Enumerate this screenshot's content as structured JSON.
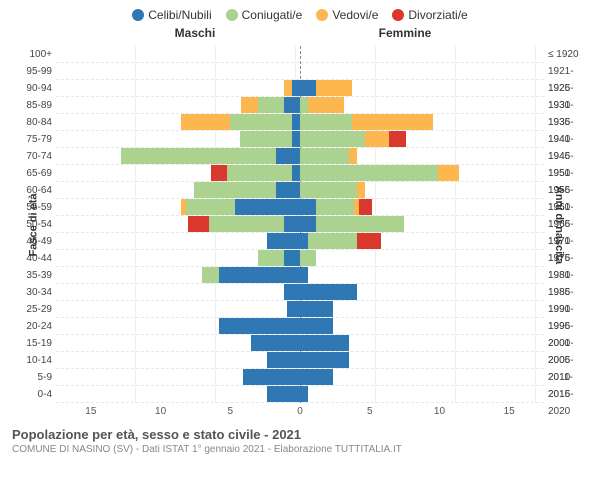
{
  "chart": {
    "type": "population-pyramid",
    "title": "Popolazione per età, sesso e stato civile - 2021",
    "subtitle": "COMUNE DI NASINO (SV) - Dati ISTAT 1° gennaio 2021 - Elaborazione TUTTITALIA.IT",
    "gender_labels": {
      "male": "Maschi",
      "female": "Femmine"
    },
    "y_left_label": "Fasce di età",
    "y_right_label": "Anni di nascita",
    "x_ticks": [
      "15",
      "10",
      "5",
      "0",
      "5",
      "10",
      "15"
    ],
    "x_max": 15,
    "colors": {
      "celibi": "#2f78b3",
      "coniugati": "#abd38f",
      "vedovi": "#fdb74f",
      "divorziati": "#d9382c",
      "grid": "#eeeeee",
      "centerline": "#888888",
      "background": "#ffffff"
    },
    "legend": [
      {
        "key": "celibi",
        "label": "Celibi/Nubili"
      },
      {
        "key": "coniugati",
        "label": "Coniugati/e"
      },
      {
        "key": "vedovi",
        "label": "Vedovi/e"
      },
      {
        "key": "divorziati",
        "label": "Divorziati/e"
      }
    ],
    "age_labels": [
      "100+",
      "95-99",
      "90-94",
      "85-89",
      "80-84",
      "75-79",
      "70-74",
      "65-69",
      "60-64",
      "55-59",
      "50-54",
      "45-49",
      "40-44",
      "35-39",
      "30-34",
      "25-29",
      "20-24",
      "15-19",
      "10-14",
      "5-9",
      "0-4"
    ],
    "birth_labels": [
      "≤ 1920",
      "1921-1925",
      "1926-1930",
      "1931-1935",
      "1936-1940",
      "1941-1945",
      "1946-1950",
      "1951-1955",
      "1956-1960",
      "1961-1965",
      "1966-1970",
      "1971-1975",
      "1976-1980",
      "1981-1985",
      "1986-1990",
      "1991-1995",
      "1996-2000",
      "2001-2005",
      "2006-2010",
      "2011-2015",
      "2016-2020"
    ],
    "rows": [
      {
        "m": {
          "celibi": 0,
          "coniugati": 0,
          "vedovi": 0,
          "divorziati": 0
        },
        "f": {
          "celibi": 0,
          "coniugati": 0,
          "vedovi": 0,
          "divorziati": 0
        }
      },
      {
        "m": {
          "celibi": 0,
          "coniugati": 0,
          "vedovi": 0,
          "divorziati": 0
        },
        "f": {
          "celibi": 0,
          "coniugati": 0,
          "vedovi": 0,
          "divorziati": 0
        }
      },
      {
        "m": {
          "celibi": 0.5,
          "coniugati": 0,
          "vedovi": 0.5,
          "divorziati": 0
        },
        "f": {
          "celibi": 1,
          "coniugati": 0,
          "vedovi": 2.2,
          "divorziati": 0
        }
      },
      {
        "m": {
          "celibi": 1,
          "coniugati": 1.6,
          "vedovi": 1,
          "divorziati": 0
        },
        "f": {
          "celibi": 0,
          "coniugati": 0.5,
          "vedovi": 2.2,
          "divorziati": 0
        }
      },
      {
        "m": {
          "celibi": 0.5,
          "coniugati": 3.8,
          "vedovi": 3,
          "divorziati": 0
        },
        "f": {
          "celibi": 0,
          "coniugati": 3.2,
          "vedovi": 5,
          "divorziati": 0
        }
      },
      {
        "m": {
          "celibi": 0.5,
          "coniugati": 3.2,
          "vedovi": 0,
          "divorziati": 0
        },
        "f": {
          "celibi": 0,
          "coniugati": 4,
          "vedovi": 1.5,
          "divorziati": 1
        }
      },
      {
        "m": {
          "celibi": 1.5,
          "coniugati": 9.5,
          "vedovi": 0,
          "divorziati": 0
        },
        "f": {
          "celibi": 0,
          "coniugati": 3,
          "vedovi": 0.5,
          "divorziati": 0
        }
      },
      {
        "m": {
          "celibi": 0.5,
          "coniugati": 4,
          "vedovi": 0,
          "divorziati": 1
        },
        "f": {
          "celibi": 0,
          "coniugati": 8.5,
          "vedovi": 1.3,
          "divorziati": 0
        }
      },
      {
        "m": {
          "celibi": 1.5,
          "coniugati": 5,
          "vedovi": 0,
          "divorziati": 0
        },
        "f": {
          "celibi": 0,
          "coniugati": 3.5,
          "vedovi": 0.5,
          "divorziati": 0
        }
      },
      {
        "m": {
          "celibi": 4,
          "coniugati": 3,
          "vedovi": 0.3,
          "divorziati": 0
        },
        "f": {
          "celibi": 1,
          "coniugati": 2.3,
          "vedovi": 0.3,
          "divorziati": 0.8
        }
      },
      {
        "m": {
          "celibi": 1,
          "coniugati": 4.6,
          "vedovi": 0,
          "divorziati": 1.3
        },
        "f": {
          "celibi": 1,
          "coniugati": 5.4,
          "vedovi": 0,
          "divorziati": 0
        }
      },
      {
        "m": {
          "celibi": 2,
          "coniugati": 0,
          "vedovi": 0,
          "divorziati": 0
        },
        "f": {
          "celibi": 0.5,
          "coniugati": 3,
          "vedovi": 0,
          "divorziati": 1.5
        }
      },
      {
        "m": {
          "celibi": 1,
          "coniugati": 1.6,
          "vedovi": 0,
          "divorziati": 0
        },
        "f": {
          "celibi": 0,
          "coniugati": 1,
          "vedovi": 0,
          "divorziati": 0
        }
      },
      {
        "m": {
          "celibi": 5,
          "coniugati": 1,
          "vedovi": 0,
          "divorziati": 0
        },
        "f": {
          "celibi": 0.5,
          "coniugati": 0,
          "vedovi": 0,
          "divorziati": 0
        }
      },
      {
        "m": {
          "celibi": 1,
          "coniugati": 0,
          "vedovi": 0,
          "divorziati": 0
        },
        "f": {
          "celibi": 3.5,
          "coniugati": 0,
          "vedovi": 0,
          "divorziati": 0
        }
      },
      {
        "m": {
          "celibi": 0.8,
          "coniugati": 0,
          "vedovi": 0,
          "divorziati": 0
        },
        "f": {
          "celibi": 2,
          "coniugati": 0,
          "vedovi": 0,
          "divorziati": 0
        }
      },
      {
        "m": {
          "celibi": 5,
          "coniugati": 0,
          "vedovi": 0,
          "divorziati": 0
        },
        "f": {
          "celibi": 2,
          "coniugati": 0,
          "vedovi": 0,
          "divorziati": 0
        }
      },
      {
        "m": {
          "celibi": 3,
          "coniugati": 0,
          "vedovi": 0,
          "divorziati": 0
        },
        "f": {
          "celibi": 3,
          "coniugati": 0,
          "vedovi": 0,
          "divorziati": 0
        }
      },
      {
        "m": {
          "celibi": 2,
          "coniugati": 0,
          "vedovi": 0,
          "divorziati": 0
        },
        "f": {
          "celibi": 3,
          "coniugati": 0,
          "vedovi": 0,
          "divorziati": 0
        }
      },
      {
        "m": {
          "celibi": 3.5,
          "coniugati": 0,
          "vedovi": 0,
          "divorziati": 0
        },
        "f": {
          "celibi": 2,
          "coniugati": 0,
          "vedovi": 0,
          "divorziati": 0
        }
      },
      {
        "m": {
          "celibi": 2,
          "coniugati": 0,
          "vedovi": 0,
          "divorziati": 0
        },
        "f": {
          "celibi": 0.5,
          "coniugati": 0,
          "vedovi": 0,
          "divorziati": 0
        }
      }
    ]
  }
}
